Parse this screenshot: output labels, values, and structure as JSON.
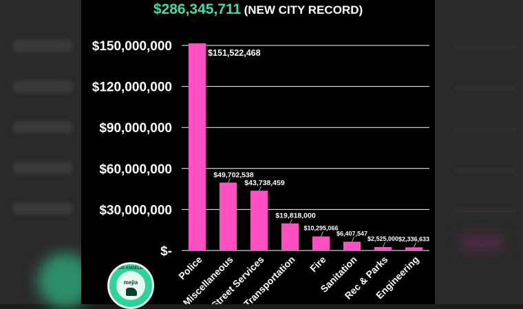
{
  "header": {
    "total_amount": "$286,345,711",
    "total_note": "(NEW CITY RECORD)"
  },
  "colors": {
    "bar": "#ff4fc1",
    "total_amount": "#3fdcb0",
    "text": "#ffffff",
    "grid": "#ffffff",
    "background": "#000000"
  },
  "logo": {
    "top_text": "LOS ANGELES",
    "name_text": "mejia"
  },
  "chart_data": {
    "type": "bar",
    "title": "",
    "xlabel": "",
    "ylabel": "",
    "categories": [
      "Police",
      "Miscellaneous",
      "Street Services",
      "Transportation",
      "Fire",
      "Sanitation",
      "Rec & Parks",
      "Engineering"
    ],
    "values": [
      151522468,
      49702538,
      43738459,
      19818000,
      10295066,
      6407547,
      2525000,
      2336633
    ],
    "data_labels": [
      "$151,522,468",
      "$49,702,538",
      "$43,738,459",
      "$19,818,000",
      "$10,295,066",
      "$6,407,547",
      "$2,525,000",
      "$2,336,633"
    ],
    "ylim": [
      0,
      150000000
    ],
    "yticks": [
      0,
      30000000,
      60000000,
      90000000,
      120000000,
      150000000
    ],
    "ytick_labels": [
      "$-",
      "$30,000,000",
      "$60,000,000",
      "$90,000,000",
      "$120,000,000",
      "$150,000,000"
    ],
    "grid": true,
    "legend": "none"
  }
}
